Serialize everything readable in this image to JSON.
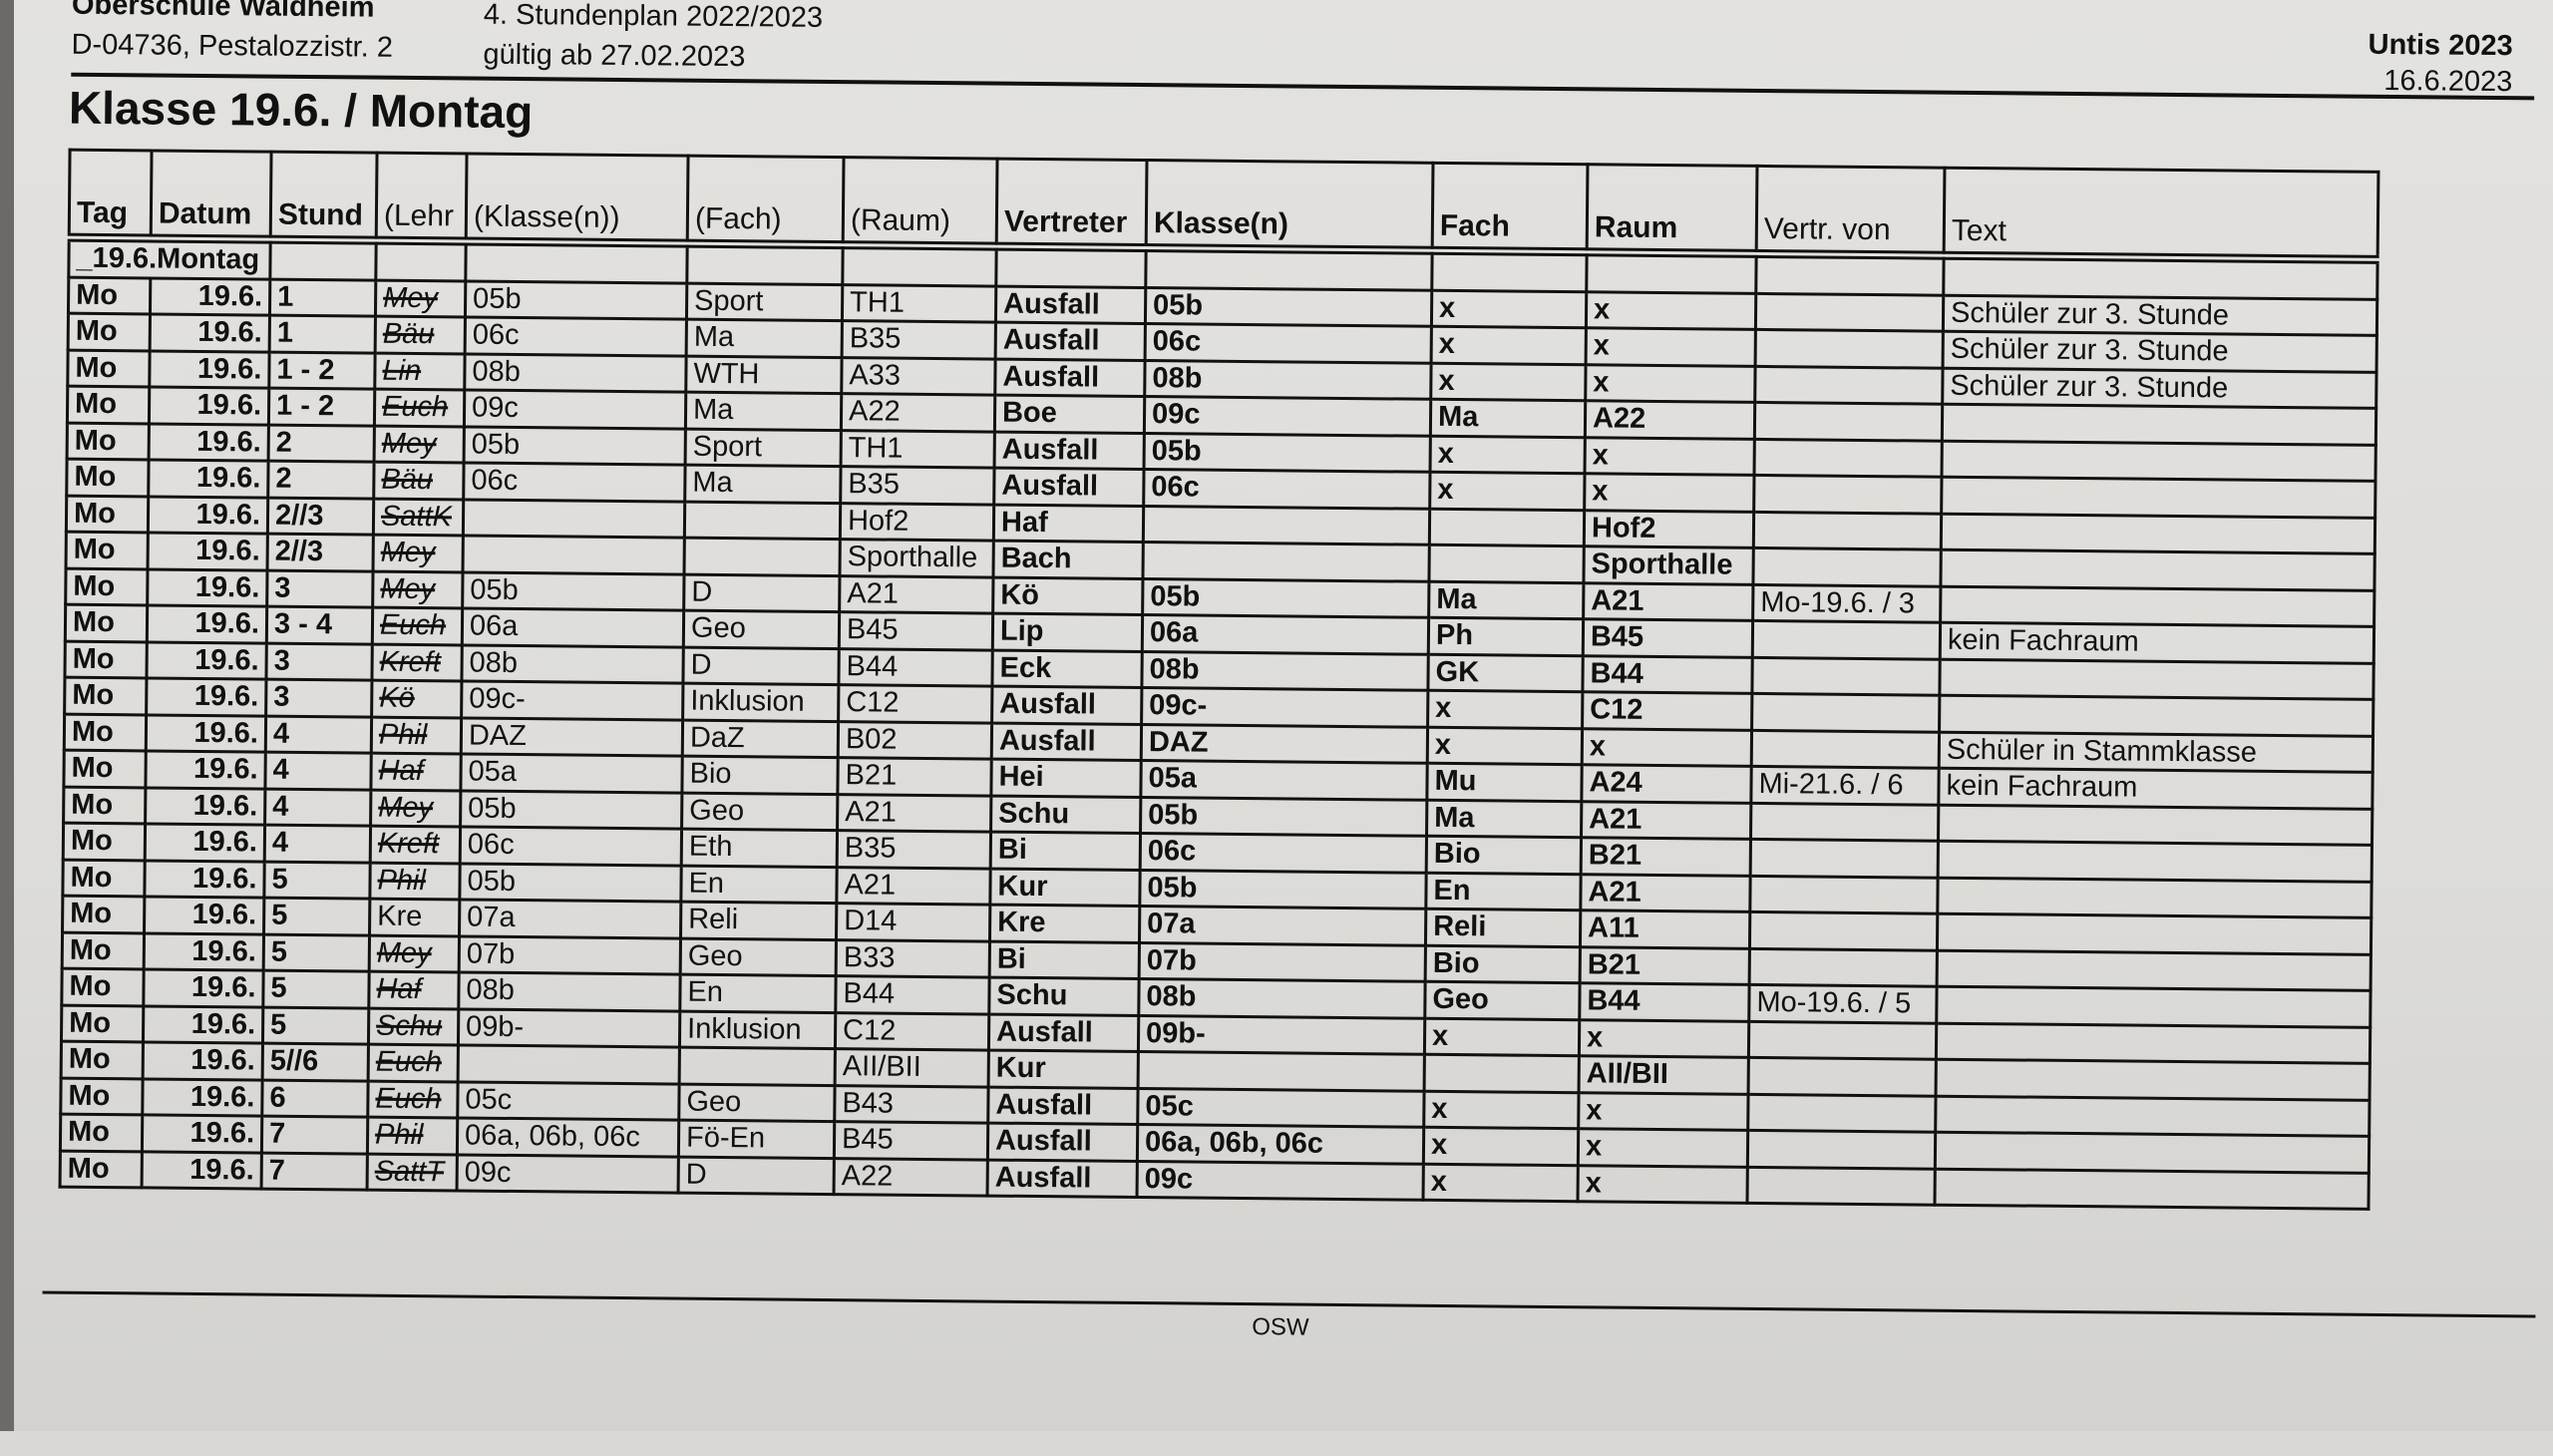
{
  "header": {
    "school": "Oberschule Waldheim",
    "address": "D-04736, Pestalozzistr. 2",
    "plan": "4. Stundenplan 2022/2023",
    "valid": "gültig ab 27.02.2023",
    "software": "Untis 2023",
    "print_date": "16.6.2023"
  },
  "title": "Klasse  19.6. / Montag",
  "table": {
    "columns": [
      "Tag",
      "Datum",
      "Stund",
      "(Lehr",
      "(Klasse(n))",
      "(Fach)",
      "(Raum)",
      "Vertreter",
      "Klasse(n)",
      "Fach",
      "Raum",
      "Vertr. von",
      "Text"
    ],
    "day_label": "_19.6.Montag",
    "rows": [
      [
        "Mo",
        "19.6.",
        "1",
        "Mey",
        "05b",
        "Sport",
        "TH1",
        "Ausfall",
        "05b",
        "x",
        "x",
        "",
        "Schüler zur 3. Stunde"
      ],
      [
        "Mo",
        "19.6.",
        "1",
        "Bäu",
        "06c",
        "Ma",
        "B35",
        "Ausfall",
        "06c",
        "x",
        "x",
        "",
        "Schüler zur 3. Stunde"
      ],
      [
        "Mo",
        "19.6.",
        "1 - 2",
        "Lin",
        "08b",
        "WTH",
        "A33",
        "Ausfall",
        "08b",
        "x",
        "x",
        "",
        "Schüler zur 3. Stunde"
      ],
      [
        "Mo",
        "19.6.",
        "1 - 2",
        "Euch",
        "09c",
        "Ma",
        "A22",
        "Boe",
        "09c",
        "Ma",
        "A22",
        "",
        ""
      ],
      [
        "Mo",
        "19.6.",
        "2",
        "Mey",
        "05b",
        "Sport",
        "TH1",
        "Ausfall",
        "05b",
        "x",
        "x",
        "",
        ""
      ],
      [
        "Mo",
        "19.6.",
        "2",
        "Bäu",
        "06c",
        "Ma",
        "B35",
        "Ausfall",
        "06c",
        "x",
        "x",
        "",
        ""
      ],
      [
        "Mo",
        "19.6.",
        "2//3",
        "SattK",
        "",
        "",
        "Hof2",
        "Haf",
        "",
        "",
        "Hof2",
        "",
        ""
      ],
      [
        "Mo",
        "19.6.",
        "2//3",
        "Mey",
        "",
        "",
        "Sporthalle",
        "Bach",
        "",
        "",
        "Sporthalle",
        "",
        ""
      ],
      [
        "Mo",
        "19.6.",
        "3",
        "Mey",
        "05b",
        "D",
        "A21",
        "Kö",
        "05b",
        "Ma",
        "A21",
        "Mo-19.6. / 3",
        ""
      ],
      [
        "Mo",
        "19.6.",
        "3 - 4",
        "Euch",
        "06a",
        "Geo",
        "B45",
        "Lip",
        "06a",
        "Ph",
        "B45",
        "",
        "kein Fachraum"
      ],
      [
        "Mo",
        "19.6.",
        "3",
        "Kreft",
        "08b",
        "D",
        "B44",
        "Eck",
        "08b",
        "GK",
        "B44",
        "",
        ""
      ],
      [
        "Mo",
        "19.6.",
        "3",
        "Kö",
        "09c-",
        "Inklusion",
        "C12",
        "Ausfall",
        "09c-",
        "x",
        "C12",
        "",
        ""
      ],
      [
        "Mo",
        "19.6.",
        "4",
        "Phil",
        "DAZ",
        "DaZ",
        "B02",
        "Ausfall",
        "DAZ",
        "x",
        "x",
        "",
        "Schüler in Stammklasse"
      ],
      [
        "Mo",
        "19.6.",
        "4",
        "Haf",
        "05a",
        "Bio",
        "B21",
        "Hei",
        "05a",
        "Mu",
        "A24",
        "Mi-21.6. / 6",
        "kein Fachraum"
      ],
      [
        "Mo",
        "19.6.",
        "4",
        "Mey",
        "05b",
        "Geo",
        "A21",
        "Schu",
        "05b",
        "Ma",
        "A21",
        "",
        ""
      ],
      [
        "Mo",
        "19.6.",
        "4",
        "Kreft",
        "06c",
        "Eth",
        "B35",
        "Bi",
        "06c",
        "Bio",
        "B21",
        "",
        ""
      ],
      [
        "Mo",
        "19.6.",
        "5",
        "Phil",
        "05b",
        "En",
        "A21",
        "Kur",
        "05b",
        "En",
        "A21",
        "",
        ""
      ],
      [
        "Mo",
        "19.6.",
        "5",
        "Kre",
        "07a",
        "Reli",
        "D14",
        "Kre",
        "07a",
        "Reli",
        "A11",
        "",
        ""
      ],
      [
        "Mo",
        "19.6.",
        "5",
        "Mey",
        "07b",
        "Geo",
        "B33",
        "Bi",
        "07b",
        "Bio",
        "B21",
        "",
        ""
      ],
      [
        "Mo",
        "19.6.",
        "5",
        "Haf",
        "08b",
        "En",
        "B44",
        "Schu",
        "08b",
        "Geo",
        "B44",
        "Mo-19.6. / 5",
        ""
      ],
      [
        "Mo",
        "19.6.",
        "5",
        "Schu",
        "09b-",
        "Inklusion",
        "C12",
        "Ausfall",
        "09b-",
        "x",
        "x",
        "",
        ""
      ],
      [
        "Mo",
        "19.6.",
        "5//6",
        "Euch",
        "",
        "",
        "AII/BII",
        "Kur",
        "",
        "",
        "AII/BII",
        "",
        ""
      ],
      [
        "Mo",
        "19.6.",
        "6",
        "Euch",
        "05c",
        "Geo",
        "B43",
        "Ausfall",
        "05c",
        "x",
        "x",
        "",
        ""
      ],
      [
        "Mo",
        "19.6.",
        "7",
        "Phil",
        "06a, 06b, 06c",
        "Fö-En",
        "B45",
        "Ausfall",
        "06a, 06b, 06c",
        "x",
        "x",
        "",
        ""
      ],
      [
        "Mo",
        "19.6.",
        "7",
        "SattT",
        "09c",
        "D",
        "A22",
        "Ausfall",
        "09c",
        "x",
        "x",
        "",
        ""
      ]
    ],
    "struck_teachers": [
      true,
      true,
      true,
      true,
      true,
      true,
      true,
      true,
      true,
      true,
      true,
      true,
      true,
      true,
      true,
      true,
      true,
      false,
      true,
      true,
      true,
      true,
      true,
      true,
      true
    ]
  },
  "footer": {
    "code": "OSW"
  }
}
